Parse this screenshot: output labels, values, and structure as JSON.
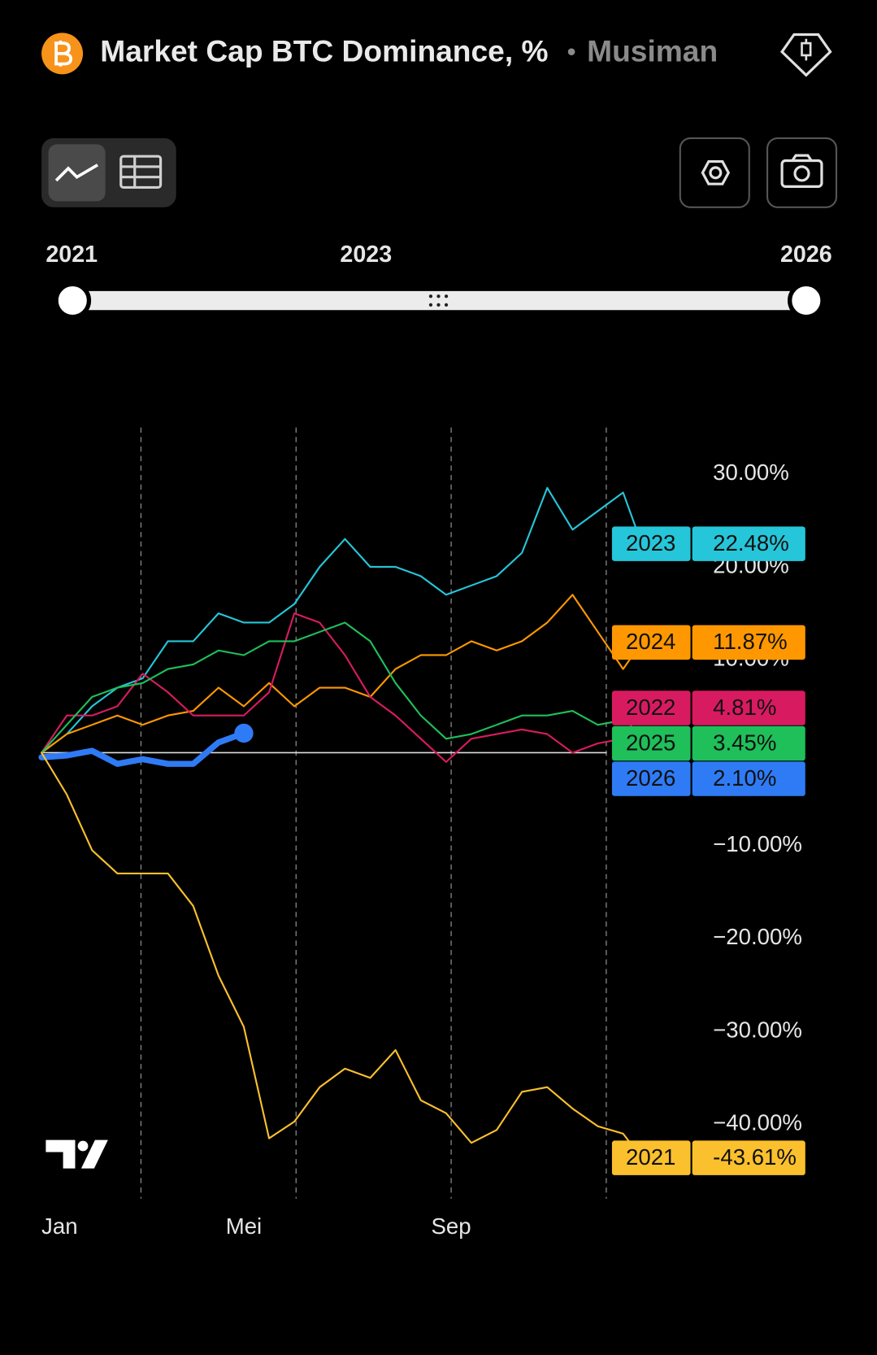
{
  "header": {
    "title": "Market Cap BTC Dominance, %",
    "separator": "•",
    "subtitle": "Musiman"
  },
  "range_slider": {
    "labels": [
      "2021",
      "2023",
      "2026"
    ]
  },
  "chart_data": {
    "type": "line",
    "x": [
      0,
      15,
      30,
      45,
      60,
      75,
      90,
      105,
      120,
      135,
      150,
      165,
      180,
      195,
      210,
      225,
      240,
      255,
      270,
      285,
      300,
      315,
      330,
      345,
      356
    ],
    "xlim": [
      0,
      365
    ],
    "xticks": [
      {
        "value": 0,
        "label": "Jan"
      },
      {
        "value": 120,
        "label": "Mei"
      },
      {
        "value": 243,
        "label": "Sep"
      }
    ],
    "xgrid": [
      59,
      151,
      243,
      335
    ],
    "ylim": [
      -48,
      35
    ],
    "yticks": [
      {
        "value": 30,
        "label": "30.00%"
      },
      {
        "value": 20,
        "label": "20.00%"
      },
      {
        "value": 10,
        "label": "10.00%"
      },
      {
        "value": -10,
        "label": "−10.00%"
      },
      {
        "value": -20,
        "label": "−20.00%"
      },
      {
        "value": -30,
        "label": "−30.00%"
      },
      {
        "value": -40,
        "label": "−40.00%"
      }
    ],
    "reference_line": 0,
    "series": [
      {
        "name": "2023",
        "color": "#26c6da",
        "values": [
          0,
          2,
          5,
          7,
          8,
          12,
          12,
          15,
          14,
          14,
          16,
          20,
          23,
          20,
          20,
          19,
          17,
          18,
          19,
          21.5,
          28.5,
          24,
          26,
          28,
          22.48
        ],
        "value_labels": [
          null,
          null,
          null,
          null,
          null,
          null,
          null,
          null,
          null,
          null,
          null,
          null,
          null,
          null,
          null,
          null,
          null,
          null,
          null,
          null,
          null,
          null,
          null,
          null,
          "22.48%"
        ]
      },
      {
        "name": "2024",
        "color": "#ff9800",
        "values": [
          0,
          2,
          3,
          4,
          3,
          4,
          4.5,
          7,
          5,
          7.5,
          5,
          7,
          7,
          6,
          9,
          10.5,
          10.5,
          12,
          11,
          12,
          14,
          17,
          13,
          9,
          11.87
        ],
        "value_labels": [
          null,
          null,
          null,
          null,
          null,
          null,
          null,
          null,
          null,
          null,
          null,
          null,
          null,
          null,
          null,
          null,
          null,
          null,
          null,
          null,
          null,
          null,
          null,
          null,
          "11.87%"
        ]
      },
      {
        "name": "2022",
        "color": "#d81b60",
        "values": [
          0,
          4,
          4,
          5,
          8.5,
          6.5,
          4,
          4,
          4,
          6.5,
          15,
          14,
          10.5,
          6,
          4,
          1.5,
          -1,
          1.5,
          2,
          2.5,
          2,
          0,
          1,
          1.5,
          4.81
        ],
        "value_labels": [
          null,
          null,
          null,
          null,
          null,
          null,
          null,
          null,
          null,
          null,
          null,
          null,
          null,
          null,
          null,
          null,
          null,
          null,
          null,
          null,
          null,
          null,
          null,
          null,
          "4.81%"
        ]
      },
      {
        "name": "2025",
        "color": "#1fbf5a",
        "values": [
          0,
          3,
          6,
          7,
          7.5,
          9,
          9.5,
          11,
          10.5,
          12,
          12,
          13,
          14,
          12,
          7.5,
          4,
          1.5,
          2,
          3,
          4,
          4,
          4.5,
          3,
          3.5,
          3.45
        ],
        "value_labels": [
          null,
          null,
          null,
          null,
          null,
          null,
          null,
          null,
          null,
          null,
          null,
          null,
          null,
          null,
          null,
          null,
          null,
          null,
          null,
          null,
          null,
          null,
          null,
          null,
          "3.45%"
        ]
      },
      {
        "name": "2026",
        "color": "#2f7bf5",
        "values": [
          -0.5,
          -0.3,
          0.2,
          -1.2,
          -0.7,
          -1.2,
          -1.2,
          1.1,
          2.1,
          null,
          null,
          null,
          null,
          null,
          null,
          null,
          null,
          null,
          null,
          null,
          null,
          null,
          null,
          null,
          null
        ],
        "value_labels": [
          null,
          null,
          null,
          null,
          null,
          null,
          null,
          null,
          "2.10%",
          null,
          null,
          null,
          null,
          null,
          null,
          null,
          null,
          null,
          null,
          null,
          null,
          null,
          null,
          null,
          null
        ]
      },
      {
        "name": "2021",
        "color": "#fbc02d",
        "values": [
          0,
          -4.5,
          -10.5,
          -13,
          -13,
          -13,
          -16.5,
          -24,
          -29.5,
          -41.5,
          -39.7,
          -36,
          -34,
          -35,
          -32,
          -37.4,
          -38.8,
          -42,
          -40.6,
          -36.5,
          -36,
          -38.3,
          -40.2,
          -41,
          -43.61
        ],
        "value_labels": [
          null,
          null,
          null,
          null,
          null,
          null,
          null,
          null,
          null,
          null,
          null,
          null,
          null,
          null,
          null,
          null,
          null,
          null,
          null,
          null,
          null,
          null,
          null,
          null,
          "-43.61%"
        ]
      }
    ]
  }
}
